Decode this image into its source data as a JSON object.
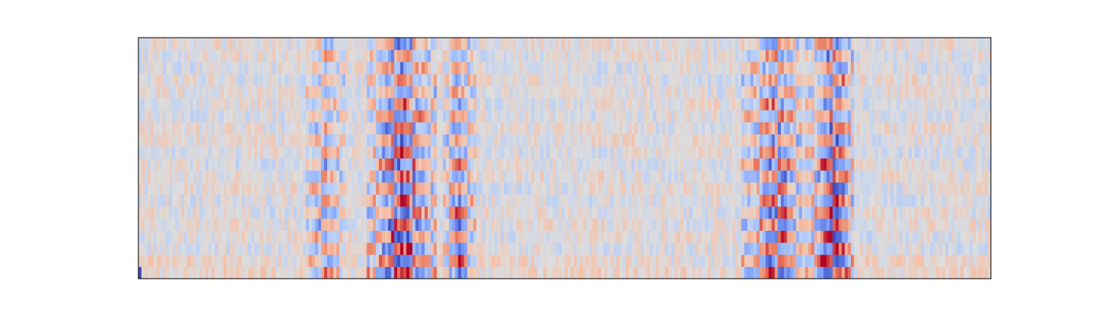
{
  "figure": {
    "background": "#ffffff"
  },
  "chart_data": {
    "type": "heatmap",
    "title": "",
    "xlabel": "",
    "ylabel": "",
    "axes_visible": false,
    "ticks": "none",
    "grid": false,
    "legend": "none",
    "colormap": "coolwarm",
    "colormap_stops": [
      "#3b4cc0",
      "#7396f5",
      "#b0cbfc",
      "#dddddd",
      "#f6bfa6",
      "#ea7b60",
      "#b40426"
    ],
    "value_range": [
      -1,
      1
    ],
    "n_rows": 20,
    "n_cols": 280,
    "orientation": "row 0 at bottom",
    "description_of_structure": {
      "baseline_noise_amplitude": 0.22,
      "bursts": [
        {
          "col_start": 55,
          "col_end": 67,
          "strength": 0.55
        },
        {
          "col_start": 75,
          "col_end": 97,
          "strength": 0.9
        },
        {
          "col_start": 100,
          "col_end": 110,
          "strength": 0.7
        },
        {
          "col_start": 198,
          "col_end": 220,
          "strength": 0.75
        },
        {
          "col_start": 221,
          "col_end": 234,
          "strength": 0.95
        }
      ],
      "corner_value": {
        "row": 0,
        "col": 0,
        "value": -1
      }
    }
  }
}
